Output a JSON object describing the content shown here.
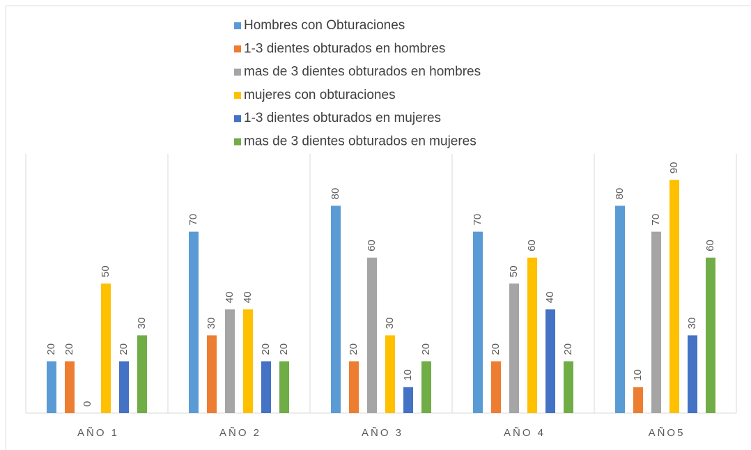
{
  "chart_data": {
    "type": "bar",
    "categories": [
      "AÑO 1",
      "AÑO 2",
      "AÑO 3",
      "AÑO 4",
      "AÑO5"
    ],
    "series": [
      {
        "name": "Hombres con Obturaciones",
        "color": "#5b9bd5",
        "values": [
          20,
          70,
          80,
          70,
          80
        ]
      },
      {
        "name": "1-3 dientes obturados en hombres",
        "color": "#ed7d31",
        "values": [
          20,
          30,
          20,
          20,
          10
        ]
      },
      {
        "name": "mas de 3 dientes obturados en hombres",
        "color": "#a5a5a5",
        "values": [
          0,
          40,
          60,
          50,
          70
        ]
      },
      {
        "name": "mujeres con obturaciones",
        "color": "#ffc000",
        "values": [
          50,
          40,
          30,
          60,
          90
        ]
      },
      {
        "name": "1-3 dientes obturados en mujeres",
        "color": "#4472c4",
        "values": [
          20,
          20,
          10,
          40,
          30
        ]
      },
      {
        "name": "mas de 3 dientes obturados en mujeres",
        "color": "#70ad47",
        "values": [
          30,
          20,
          20,
          20,
          60
        ]
      }
    ],
    "ylim": [
      0,
      100
    ],
    "grid": false,
    "legend": "top"
  }
}
